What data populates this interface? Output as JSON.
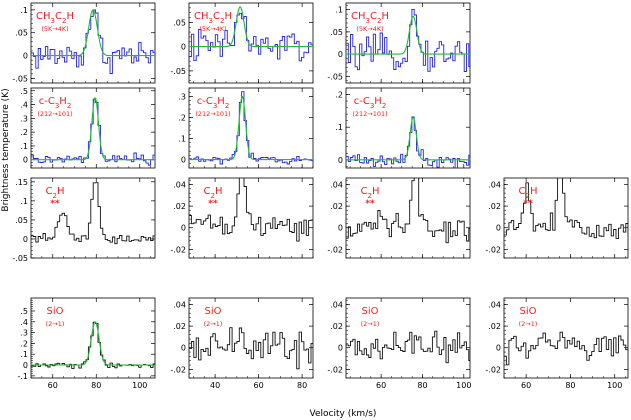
{
  "figure": {
    "ylabel": "Brightness temperature (K)",
    "xlabel": "Velocity (km/s)"
  },
  "colors": {
    "axis": "#000000",
    "spectrum_blue": "#2222dd",
    "spectrum_black": "#111111",
    "fit_green": "#22bb33",
    "label_red": "#ee2222"
  },
  "chart_data": [
    {
      "type": "line",
      "row": 0,
      "col": 0,
      "title": "CH3C2H",
      "transition": "(5K->4K)",
      "stars": "",
      "xlim": [
        50,
        107
      ],
      "ylim": [
        -0.06,
        0.115
      ],
      "yticks": [
        -0.05,
        0,
        0.05,
        0.1
      ],
      "xticks": [
        60,
        80,
        100
      ],
      "show_xticklabels": false,
      "spectrum_color": "blue",
      "line_center": 78,
      "line_peak": 0.1,
      "line_width": 2.0,
      "noise": 0.028,
      "series": [
        {
          "name": "spectrum"
        },
        {
          "name": "fit"
        }
      ]
    },
    {
      "type": "line",
      "row": 0,
      "col": 1,
      "title": "CH3C2H",
      "transition": "(5K->4K)",
      "stars": "",
      "xlim": [
        28,
        85
      ],
      "ylim": [
        -0.075,
        0.09
      ],
      "yticks": [
        -0.05,
        0,
        0.05
      ],
      "xticks": [
        40,
        60,
        80
      ],
      "show_xticklabels": false,
      "spectrum_color": "blue",
      "line_center": 51,
      "line_peak": 0.082,
      "line_width": 1.8,
      "noise": 0.03,
      "series": [
        {
          "name": "spectrum"
        },
        {
          "name": "fit"
        }
      ]
    },
    {
      "type": "line",
      "row": 0,
      "col": 2,
      "title": "CH3C2H",
      "transition": "(5K->4K)",
      "stars": "",
      "xlim": [
        43,
        103
      ],
      "ylim": [
        -0.065,
        0.115
      ],
      "yticks": [
        -0.05,
        0,
        0.05,
        0.1
      ],
      "xticks": [
        60,
        80,
        100
      ],
      "show_xticklabels": false,
      "spectrum_color": "blue",
      "line_center": 75,
      "line_peak": 0.085,
      "line_width": 1.8,
      "noise": 0.03,
      "series": [
        {
          "name": "spectrum"
        },
        {
          "name": "fit"
        }
      ]
    },
    {
      "type": "line",
      "row": 1,
      "col": 0,
      "title": "c-C3H2",
      "transition": "(212->101)",
      "stars": "",
      "xlim": [
        50,
        107
      ],
      "ylim": [
        -0.06,
        0.52
      ],
      "yticks": [
        0,
        0.1,
        0.2,
        0.3,
        0.4,
        0.5
      ],
      "xticks": [
        60,
        80,
        100
      ],
      "show_xticklabels": false,
      "spectrum_color": "blue",
      "line_center": 79,
      "line_peak": 0.45,
      "line_width": 1.5,
      "noise": 0.03,
      "series": [
        {
          "name": "spectrum"
        },
        {
          "name": "fit"
        }
      ]
    },
    {
      "type": "line",
      "row": 1,
      "col": 1,
      "title": "c-C3H2",
      "transition": "(212->101)",
      "stars": "",
      "xlim": [
        28,
        85
      ],
      "ylim": [
        -0.04,
        0.34
      ],
      "yticks": [
        0,
        0.1,
        0.2,
        0.3
      ],
      "xticks": [
        40,
        60,
        80
      ],
      "show_xticklabels": false,
      "spectrum_color": "blue",
      "line_center": 52,
      "line_peak": 0.3,
      "line_width": 1.5,
      "noise": 0.02,
      "series": [
        {
          "name": "spectrum"
        },
        {
          "name": "fit"
        }
      ]
    },
    {
      "type": "line",
      "row": 1,
      "col": 2,
      "title": "c-C3H2",
      "transition": "(212->101)",
      "stars": "",
      "xlim": [
        43,
        103
      ],
      "ylim": [
        -0.025,
        0.22
      ],
      "yticks": [
        0,
        0.1,
        0.2
      ],
      "xticks": [
        60,
        80,
        100
      ],
      "show_xticklabels": false,
      "spectrum_color": "blue",
      "line_center": 75,
      "line_peak": 0.13,
      "line_width": 1.5,
      "noise": 0.02,
      "series": [
        {
          "name": "spectrum"
        },
        {
          "name": "fit"
        }
      ]
    },
    {
      "type": "line",
      "row": 2,
      "col": 0,
      "title": "C2H",
      "transition": "",
      "stars": "**",
      "xlim": [
        50,
        107
      ],
      "ylim": [
        -0.05,
        0.16
      ],
      "yticks": [
        -0.05,
        0,
        0.05,
        0.1,
        0.15
      ],
      "xticks": [
        60,
        80,
        100
      ],
      "show_xticklabels": false,
      "spectrum_color": "black",
      "line_center": 79,
      "line_peak": 0.15,
      "line_width": 1.6,
      "noise": 0.01,
      "second_center": 64,
      "second_peak": 0.065,
      "second_width": 2.2,
      "series": [
        {
          "name": "spectrum"
        }
      ]
    },
    {
      "type": "line",
      "row": 2,
      "col": 1,
      "title": "C2H",
      "transition": "",
      "stars": "**",
      "xlim": [
        28,
        85
      ],
      "ylim": [
        -0.028,
        0.046
      ],
      "yticks": [
        -0.02,
        0,
        0.02,
        0.04
      ],
      "xticks": [
        40,
        60,
        80
      ],
      "show_xticklabels": false,
      "spectrum_color": "black",
      "line_center": 52,
      "line_peak": 0.06,
      "line_width": 1.6,
      "noise": 0.01,
      "second_center": 36,
      "second_peak": 0.012,
      "second_width": 2.2,
      "series": [
        {
          "name": "spectrum"
        }
      ]
    },
    {
      "type": "line",
      "row": 2,
      "col": 2,
      "title": "C2H",
      "transition": "",
      "stars": "**",
      "xlim": [
        43,
        103
      ],
      "ylim": [
        -0.028,
        0.046
      ],
      "yticks": [
        -0.02,
        0,
        0.02,
        0.04
      ],
      "xticks": [
        60,
        80,
        100
      ],
      "show_xticklabels": false,
      "spectrum_color": "black",
      "line_center": 76,
      "line_peak": 0.06,
      "line_width": 1.6,
      "noise": 0.01,
      "second_center": 60,
      "second_peak": 0.015,
      "second_width": 2.2,
      "series": [
        {
          "name": "spectrum"
        }
      ]
    },
    {
      "type": "line",
      "row": 2,
      "col": 3,
      "title": "C2H",
      "transition": "",
      "stars": "**",
      "xlim": [
        50,
        106
      ],
      "ylim": [
        -0.028,
        0.046
      ],
      "yticks": [
        -0.02,
        0,
        0.02,
        0.04
      ],
      "xticks": [
        60,
        80,
        100
      ],
      "show_xticklabels": false,
      "spectrum_color": "black",
      "line_center": 75,
      "line_peak": 0.06,
      "line_width": 1.5,
      "noise": 0.01,
      "second_center": 60,
      "second_peak": 0.03,
      "second_width": 2.0,
      "series": [
        {
          "name": "spectrum"
        }
      ]
    },
    {
      "type": "line",
      "row": 3,
      "col": 0,
      "title": "SiO",
      "transition": "(2->1)",
      "stars": "",
      "xlim": [
        50,
        107
      ],
      "ylim": [
        -0.12,
        0.62
      ],
      "yticks": [
        -0.1,
        0,
        0.1,
        0.2,
        0.3,
        0.4,
        0.5
      ],
      "xticks": [
        60,
        80,
        100
      ],
      "show_xticklabels": true,
      "spectrum_color": "black",
      "line_center": 79,
      "line_peak": 0.4,
      "line_width": 1.8,
      "noise": 0.025,
      "series": [
        {
          "name": "spectrum"
        },
        {
          "name": "fit"
        }
      ]
    },
    {
      "type": "line",
      "row": 3,
      "col": 1,
      "title": "SiO",
      "transition": "(2->1)",
      "stars": "",
      "xlim": [
        28,
        85
      ],
      "ylim": [
        -0.028,
        0.046
      ],
      "yticks": [
        -0.02,
        0,
        0.02,
        0.04
      ],
      "xticks": [
        40,
        60,
        80
      ],
      "show_xticklabels": true,
      "spectrum_color": "black",
      "line_center": 52,
      "line_peak": 0.008,
      "line_width": 3,
      "noise": 0.013,
      "series": [
        {
          "name": "spectrum"
        }
      ]
    },
    {
      "type": "line",
      "row": 3,
      "col": 2,
      "title": "SiO",
      "transition": "(2->1)",
      "stars": "",
      "xlim": [
        43,
        103
      ],
      "ylim": [
        -0.028,
        0.046
      ],
      "yticks": [
        -0.02,
        0,
        0.02,
        0.04
      ],
      "xticks": [
        60,
        80,
        100
      ],
      "show_xticklabels": true,
      "spectrum_color": "black",
      "line_center": 75,
      "line_peak": 0.006,
      "line_width": 3,
      "noise": 0.011,
      "series": [
        {
          "name": "spectrum"
        }
      ]
    },
    {
      "type": "line",
      "row": 3,
      "col": 3,
      "title": "SiO",
      "transition": "(2->1)",
      "stars": "",
      "xlim": [
        50,
        106
      ],
      "ylim": [
        -0.028,
        0.046
      ],
      "yticks": [
        -0.02,
        0,
        0.02,
        0.04
      ],
      "xticks": [
        60,
        80,
        100
      ],
      "show_xticklabels": true,
      "spectrum_color": "black",
      "line_center": 75,
      "line_peak": 0.008,
      "line_width": 3,
      "noise": 0.012,
      "series": [
        {
          "name": "spectrum"
        }
      ]
    }
  ]
}
